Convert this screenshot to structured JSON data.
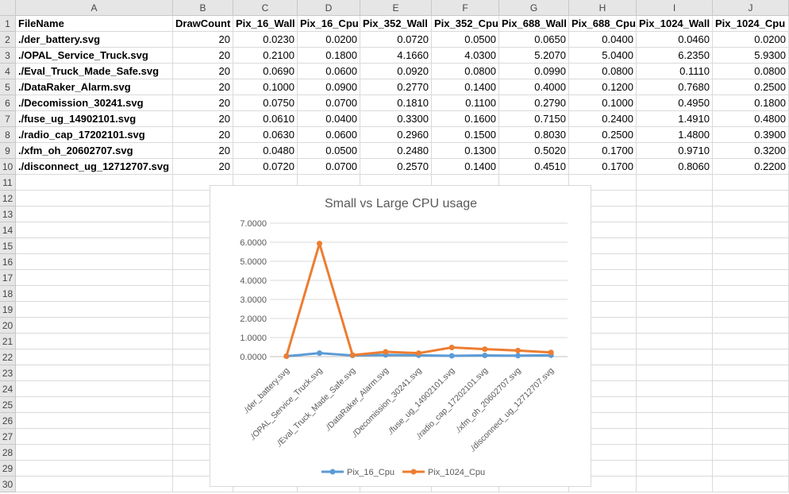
{
  "columns": [
    "A",
    "B",
    "C",
    "D",
    "E",
    "F",
    "G",
    "H",
    "I",
    "J"
  ],
  "rows": [
    "1",
    "2",
    "3",
    "4",
    "5",
    "6",
    "7",
    "8",
    "9",
    "10",
    "11",
    "12",
    "13",
    "14",
    "15",
    "16",
    "17",
    "18",
    "19",
    "20",
    "21",
    "22",
    "23",
    "24",
    "25",
    "26",
    "27",
    "28",
    "29",
    "30"
  ],
  "header_row": [
    "FileName",
    "DrawCount",
    "Pix_16_Wall",
    "Pix_16_Cpu",
    "Pix_352_Wall",
    "Pix_352_Cpu",
    "Pix_688_Wall",
    "Pix_688_Cpu",
    "Pix_1024_Wall",
    "Pix_1024_Cpu"
  ],
  "data_rows": [
    [
      "./der_battery.svg",
      "20",
      "0.0230",
      "0.0200",
      "0.0720",
      "0.0500",
      "0.0650",
      "0.0400",
      "0.0460",
      "0.0200"
    ],
    [
      "./OPAL_Service_Truck.svg",
      "20",
      "0.2100",
      "0.1800",
      "4.1660",
      "4.0300",
      "5.2070",
      "5.0400",
      "6.2350",
      "5.9300"
    ],
    [
      "./Eval_Truck_Made_Safe.svg",
      "20",
      "0.0690",
      "0.0600",
      "0.0920",
      "0.0800",
      "0.0990",
      "0.0800",
      "0.1110",
      "0.0800"
    ],
    [
      "./DataRaker_Alarm.svg",
      "20",
      "0.1000",
      "0.0900",
      "0.2770",
      "0.1400",
      "0.4000",
      "0.1200",
      "0.7680",
      "0.2500"
    ],
    [
      "./Decomission_30241.svg",
      "20",
      "0.0750",
      "0.0700",
      "0.1810",
      "0.1100",
      "0.2790",
      "0.1000",
      "0.4950",
      "0.1800"
    ],
    [
      "./fuse_ug_14902101.svg",
      "20",
      "0.0610",
      "0.0400",
      "0.3300",
      "0.1600",
      "0.7150",
      "0.2400",
      "1.4910",
      "0.4800"
    ],
    [
      "./radio_cap_17202101.svg",
      "20",
      "0.0630",
      "0.0600",
      "0.2960",
      "0.1500",
      "0.8030",
      "0.2500",
      "1.4800",
      "0.3900"
    ],
    [
      "./xfm_oh_20602707.svg",
      "20",
      "0.0480",
      "0.0500",
      "0.2480",
      "0.1300",
      "0.5020",
      "0.1700",
      "0.9710",
      "0.3200"
    ],
    [
      "./disconnect_ug_12712707.svg",
      "20",
      "0.0720",
      "0.0700",
      "0.2570",
      "0.1400",
      "0.4510",
      "0.1700",
      "0.8060",
      "0.2200"
    ]
  ],
  "chart_data": {
    "type": "line",
    "title": "Small vs Large CPU usage",
    "categories": [
      "./der_battery.svg",
      "./OPAL_Service_Truck.svg",
      "./Eval_Truck_Made_Safe.svg",
      "./DataRaker_Alarm.svg",
      "./Decomission_30241.svg",
      "./fuse_ug_14902101.svg",
      "./radio_cap_17202101.svg",
      "./xfm_oh_20602707.svg",
      "./disconnect_ug_12712707.svg"
    ],
    "series": [
      {
        "name": "Pix_16_Cpu",
        "color": "#5b9bd5",
        "values": [
          0.02,
          0.18,
          0.06,
          0.09,
          0.07,
          0.04,
          0.06,
          0.05,
          0.07
        ]
      },
      {
        "name": "Pix_1024_Cpu",
        "color": "#ed7d31",
        "values": [
          0.02,
          5.93,
          0.08,
          0.25,
          0.18,
          0.48,
          0.39,
          0.32,
          0.22
        ]
      }
    ],
    "yticks": [
      "0.0000",
      "1.0000",
      "2.0000",
      "3.0000",
      "4.0000",
      "5.0000",
      "6.0000",
      "7.0000"
    ],
    "ylim": [
      0,
      7
    ],
    "grid": true,
    "legend": "bottom"
  }
}
